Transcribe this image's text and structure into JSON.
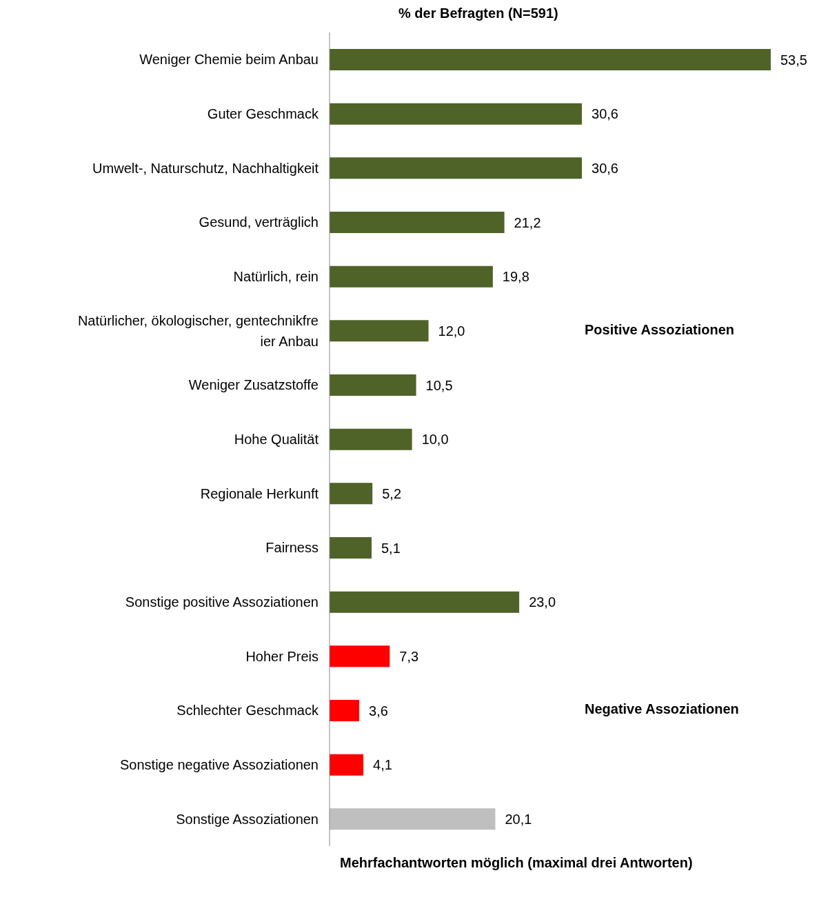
{
  "chart_data": {
    "type": "bar",
    "orientation": "horizontal",
    "title": "% der Befragten (N=591)",
    "categories": [
      "Weniger Chemie beim Anbau",
      "Guter Geschmack",
      "Umwelt-, Naturschutz, Nachhaltigkeit",
      "Gesund, verträglich",
      "Natürlich, rein",
      "Natürlicher, ökologischer, gentechnikfreier Anbau",
      "Weniger Zusatzstoffe",
      "Hohe Qualität",
      "Regionale Herkunft",
      "Fairness",
      "Sonstige positive Assoziationen",
      "Hoher Preis",
      "Schlechter Geschmack",
      "Sonstige negative Assoziationen",
      "Sonstige Assoziationen"
    ],
    "values": [
      53.5,
      30.6,
      30.6,
      21.2,
      19.8,
      12.0,
      10.5,
      10.0,
      5.2,
      5.1,
      23.0,
      7.3,
      3.6,
      4.1,
      20.1
    ],
    "value_labels": [
      "53,5",
      "30,6",
      "30,6",
      "21,2",
      "19,8",
      "12,0",
      "10,5",
      "10,0",
      "5,2",
      "5,1",
      "23,0",
      "7,3",
      "3,6",
      "4,1",
      "20,1"
    ],
    "colors": [
      "#4f6228",
      "#4f6228",
      "#4f6228",
      "#4f6228",
      "#4f6228",
      "#4f6228",
      "#4f6228",
      "#4f6228",
      "#4f6228",
      "#4f6228",
      "#4f6228",
      "#ff0000",
      "#ff0000",
      "#ff0000",
      "#bfbfbf"
    ],
    "annotations": [
      "Positive Assoziationen",
      "Negative Assoziationen",
      "Mehrfachantworten möglich (maximal drei Antworten)"
    ],
    "tick_labels": "y"
  }
}
